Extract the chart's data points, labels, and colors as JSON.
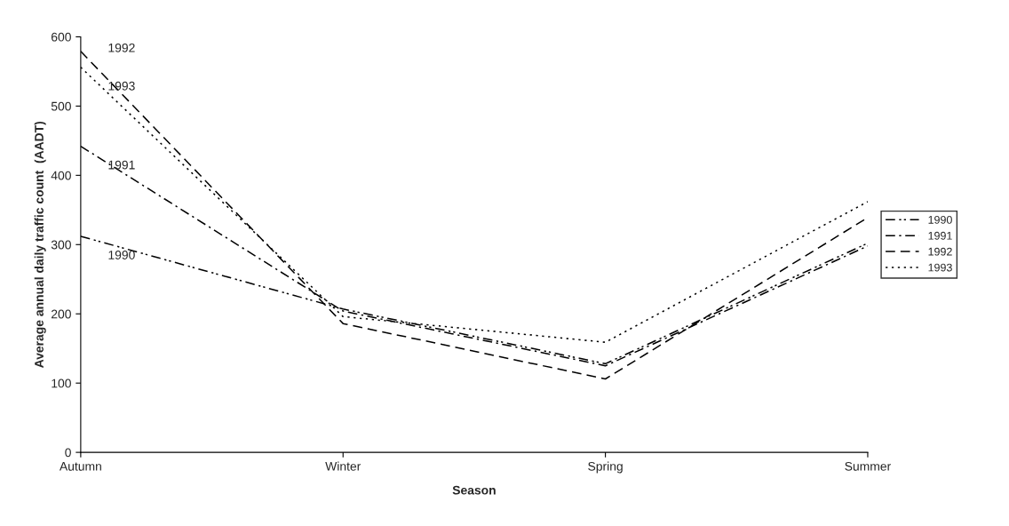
{
  "chart_data": {
    "type": "line",
    "xlabel": "Season",
    "ylabel": "Average annual daily traffic count  (AADT)",
    "categories": [
      "Autumn",
      "Winter",
      "Spring",
      "Summer"
    ],
    "series": [
      {
        "name": "1990",
        "color": "#000000",
        "line_style": "dashdotdot",
        "values": [
          312,
          207,
          128,
          302
        ]
      },
      {
        "name": "1991",
        "color": "#000000",
        "line_style": "dashdot",
        "values": [
          442,
          204,
          125,
          298
        ]
      },
      {
        "name": "1992",
        "color": "#000000",
        "line_style": "dashed",
        "values": [
          579,
          186,
          106,
          339
        ]
      },
      {
        "name": "1993",
        "color": "#000000",
        "line_style": "dotted",
        "values": [
          556,
          196,
          159,
          362
        ]
      }
    ],
    "annotations": [
      {
        "text": "1992",
        "x": "Autumn",
        "y": 579
      },
      {
        "text": "1993",
        "x": "Autumn",
        "y": 556
      },
      {
        "text": "1991",
        "x": "Autumn",
        "y": 442
      },
      {
        "text": "1990",
        "x": "Autumn",
        "y": 312
      }
    ],
    "ylim": [
      0,
      600
    ],
    "yticks": [
      0,
      100,
      200,
      300,
      400,
      500,
      600
    ],
    "grid": false,
    "legend": "right",
    "marker": "none"
  }
}
